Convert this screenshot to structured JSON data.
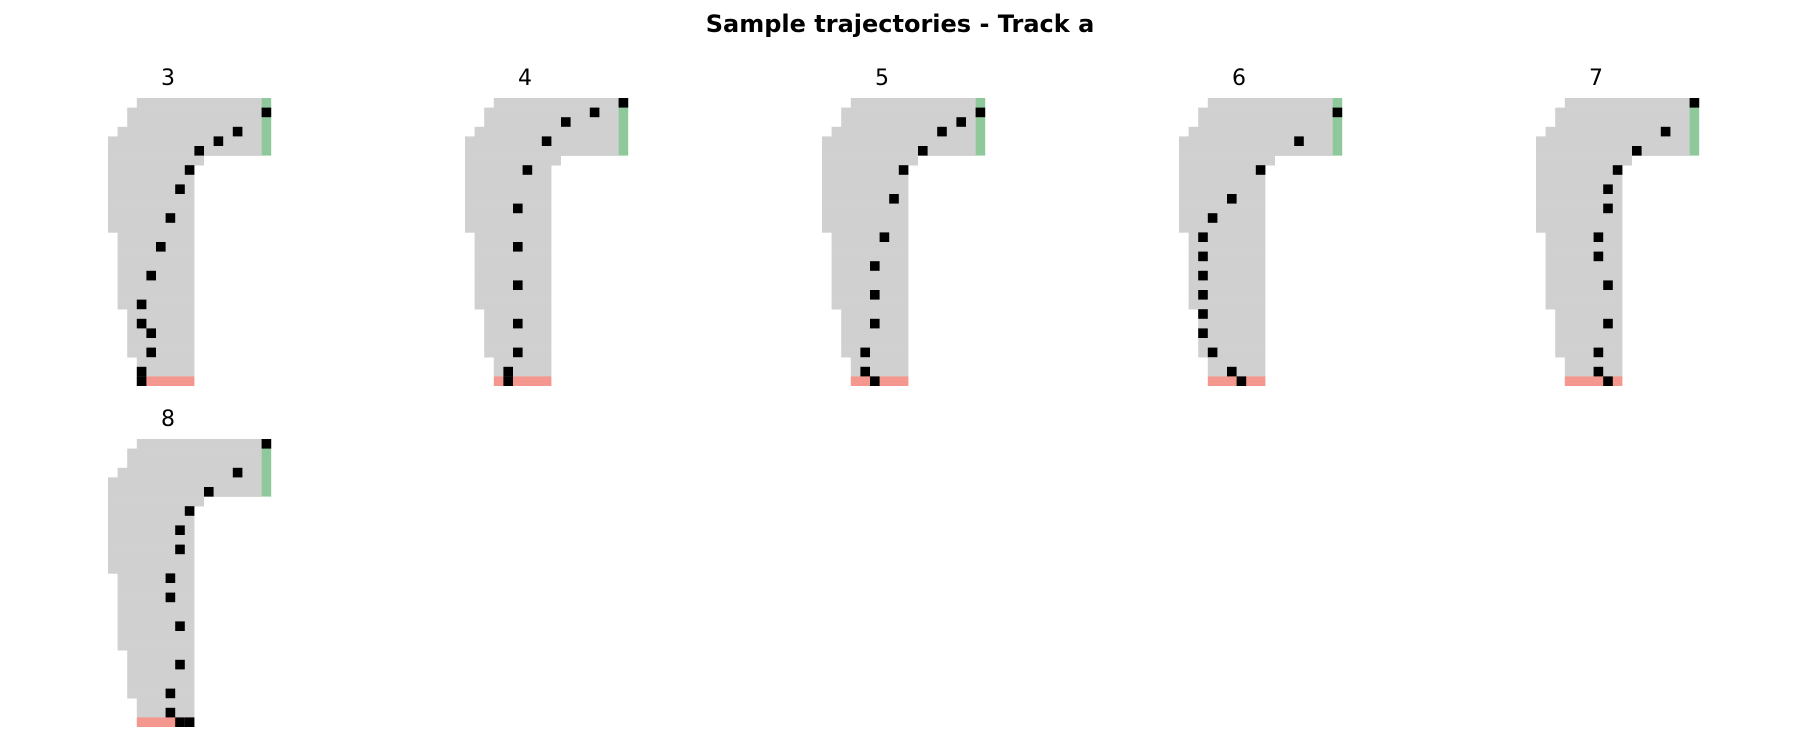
{
  "title": "Sample trajectories - Track a",
  "colors": {
    "track": "#d0d0d0",
    "start": "#f4978e",
    "finish": "#8fc89a",
    "car": "#000000"
  },
  "chart_data": {
    "type": "scatter",
    "grid": false,
    "axes": "off",
    "track": {
      "width_cells": 17,
      "height_cells": 30,
      "rows": [
        {
          "y": 0,
          "x_from": 3,
          "x_to": 15
        },
        {
          "y": 1,
          "x_from": 2,
          "x_to": 15
        },
        {
          "y": 2,
          "x_from": 2,
          "x_to": 15
        },
        {
          "y": 3,
          "x_from": 1,
          "x_to": 15
        },
        {
          "y": 4,
          "x_from": 0,
          "x_to": 15
        },
        {
          "y": 5,
          "x_from": 0,
          "x_to": 15
        },
        {
          "y": 6,
          "x_from": 0,
          "x_to": 9
        },
        {
          "y": 7,
          "x_from": 0,
          "x_to": 8
        },
        {
          "y": 8,
          "x_from": 0,
          "x_to": 8
        },
        {
          "y": 9,
          "x_from": 0,
          "x_to": 8
        },
        {
          "y": 10,
          "x_from": 0,
          "x_to": 8
        },
        {
          "y": 11,
          "x_from": 0,
          "x_to": 8
        },
        {
          "y": 12,
          "x_from": 0,
          "x_to": 8
        },
        {
          "y": 13,
          "x_from": 0,
          "x_to": 8
        },
        {
          "y": 14,
          "x_from": 1,
          "x_to": 8
        },
        {
          "y": 15,
          "x_from": 1,
          "x_to": 8
        },
        {
          "y": 16,
          "x_from": 1,
          "x_to": 8
        },
        {
          "y": 17,
          "x_from": 1,
          "x_to": 8
        },
        {
          "y": 18,
          "x_from": 1,
          "x_to": 8
        },
        {
          "y": 19,
          "x_from": 1,
          "x_to": 8
        },
        {
          "y": 20,
          "x_from": 1,
          "x_to": 8
        },
        {
          "y": 21,
          "x_from": 1,
          "x_to": 8
        },
        {
          "y": 22,
          "x_from": 2,
          "x_to": 8
        },
        {
          "y": 23,
          "x_from": 2,
          "x_to": 8
        },
        {
          "y": 24,
          "x_from": 2,
          "x_to": 8
        },
        {
          "y": 25,
          "x_from": 2,
          "x_to": 8
        },
        {
          "y": 26,
          "x_from": 2,
          "x_to": 8
        },
        {
          "y": 27,
          "x_from": 3,
          "x_to": 8
        },
        {
          "y": 28,
          "x_from": 3,
          "x_to": 8
        }
      ],
      "start_line": {
        "y": 29,
        "x_from": 3,
        "x_to": 8
      },
      "finish_line": {
        "x": 16,
        "y_from": 0,
        "y_to": 5
      }
    },
    "panels": [
      {
        "label": "3",
        "points": [
          [
            16,
            1
          ],
          [
            13,
            3
          ],
          [
            11,
            4
          ],
          [
            9,
            5
          ],
          [
            8,
            7
          ],
          [
            7,
            9
          ],
          [
            6,
            12
          ],
          [
            5,
            15
          ],
          [
            4,
            18
          ],
          [
            3,
            21
          ],
          [
            3,
            23
          ],
          [
            4,
            24
          ],
          [
            4,
            26
          ],
          [
            3,
            28
          ],
          [
            3,
            29
          ]
        ]
      },
      {
        "label": "4",
        "points": [
          [
            16,
            0
          ],
          [
            13,
            1
          ],
          [
            10,
            2
          ],
          [
            8,
            4
          ],
          [
            6,
            7
          ],
          [
            5,
            11
          ],
          [
            5,
            15
          ],
          [
            5,
            19
          ],
          [
            5,
            23
          ],
          [
            5,
            26
          ],
          [
            4,
            28
          ],
          [
            4,
            29
          ]
        ]
      },
      {
        "label": "5",
        "points": [
          [
            16,
            1
          ],
          [
            14,
            2
          ],
          [
            12,
            3
          ],
          [
            10,
            5
          ],
          [
            8,
            7
          ],
          [
            7,
            10
          ],
          [
            6,
            14
          ],
          [
            5,
            17
          ],
          [
            5,
            20
          ],
          [
            5,
            23
          ],
          [
            4,
            26
          ],
          [
            4,
            28
          ],
          [
            5,
            29
          ]
        ]
      },
      {
        "label": "6",
        "points": [
          [
            16,
            1
          ],
          [
            12,
            4
          ],
          [
            8,
            7
          ],
          [
            5,
            10
          ],
          [
            3,
            12
          ],
          [
            2,
            14
          ],
          [
            2,
            16
          ],
          [
            2,
            18
          ],
          [
            2,
            20
          ],
          [
            2,
            22
          ],
          [
            2,
            24
          ],
          [
            3,
            26
          ],
          [
            5,
            28
          ],
          [
            6,
            29
          ]
        ]
      },
      {
        "label": "7",
        "points": [
          [
            16,
            0
          ],
          [
            13,
            3
          ],
          [
            10,
            5
          ],
          [
            8,
            7
          ],
          [
            7,
            9
          ],
          [
            7,
            11
          ],
          [
            6,
            14
          ],
          [
            6,
            16
          ],
          [
            7,
            19
          ],
          [
            7,
            23
          ],
          [
            6,
            26
          ],
          [
            6,
            28
          ],
          [
            7,
            29
          ]
        ]
      },
      {
        "label": "8",
        "points": [
          [
            16,
            0
          ],
          [
            13,
            3
          ],
          [
            10,
            5
          ],
          [
            8,
            7
          ],
          [
            7,
            9
          ],
          [
            7,
            11
          ],
          [
            6,
            14
          ],
          [
            6,
            16
          ],
          [
            7,
            19
          ],
          [
            7,
            23
          ],
          [
            6,
            26
          ],
          [
            6,
            28
          ],
          [
            7,
            29
          ],
          [
            8,
            29
          ]
        ]
      }
    ]
  }
}
